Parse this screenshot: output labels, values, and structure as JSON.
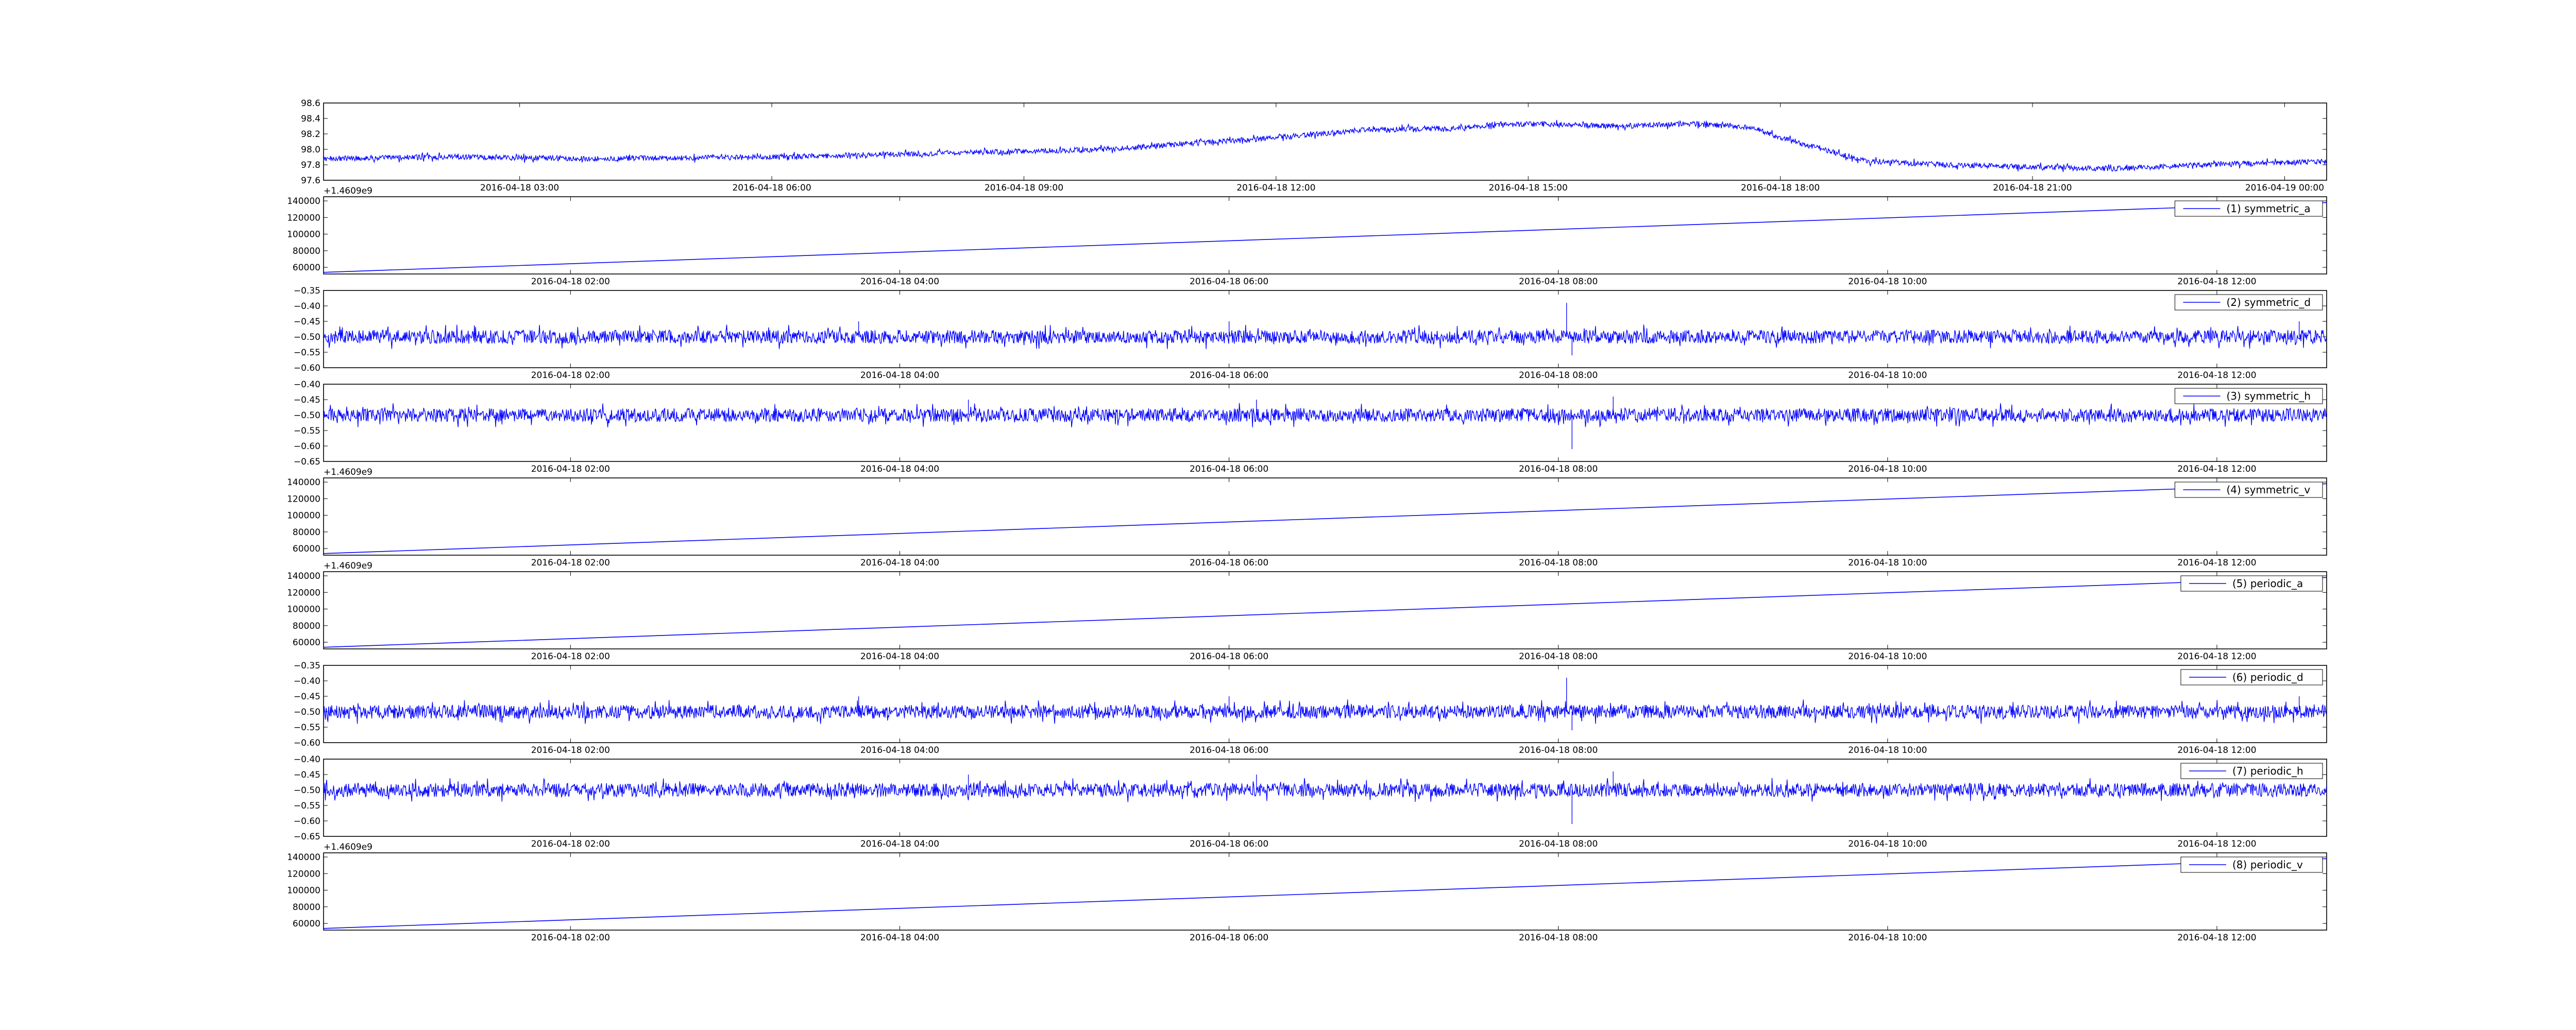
{
  "chart_data": [
    {
      "type": "line",
      "x_is_time": true,
      "x_start": "2016-04-18 00:40",
      "x_end": "2016-04-19 00:30",
      "xtick_labels": [
        {
          "label": "2016-04-18 03:00",
          "time": "2016-04-18 03:00"
        },
        {
          "label": "2016-04-18 06:00",
          "time": "2016-04-18 06:00"
        },
        {
          "label": "2016-04-18 09:00",
          "time": "2016-04-18 09:00"
        },
        {
          "label": "2016-04-18 12:00",
          "time": "2016-04-18 12:00"
        },
        {
          "label": "2016-04-18 15:00",
          "time": "2016-04-18 15:00"
        },
        {
          "label": "2016-04-18 18:00",
          "time": "2016-04-18 18:00"
        },
        {
          "label": "2016-04-18 21:00",
          "time": "2016-04-18 21:00"
        },
        {
          "label": "2016-04-19 00:00",
          "time": "2016-04-19 00:00"
        }
      ],
      "ylim": [
        97.6,
        98.6
      ],
      "yticks": [
        "98.6",
        "98.4",
        "98.2",
        "98.0",
        "97.8",
        "97.6"
      ],
      "offset_label": "+1.4609e9",
      "noise": 0.035,
      "series": [
        {
          "color": "#0000ff",
          "points": [
            [
              "2016-04-18 00:40",
              97.88
            ],
            [
              "2016-04-18 02:00",
              97.9
            ],
            [
              "2016-04-18 04:00",
              97.88
            ],
            [
              "2016-04-18 06:00",
              97.9
            ],
            [
              "2016-04-18 08:00",
              97.95
            ],
            [
              "2016-04-18 10:00",
              98.0
            ],
            [
              "2016-04-18 12:00",
              98.15
            ],
            [
              "2016-04-18 13:00",
              98.25
            ],
            [
              "2016-04-18 14:00",
              98.27
            ],
            [
              "2016-04-18 15:00",
              98.33
            ],
            [
              "2016-04-18 16:00",
              98.3
            ],
            [
              "2016-04-18 17:00",
              98.33
            ],
            [
              "2016-04-18 17:40",
              98.28
            ],
            [
              "2016-04-18 18:00",
              98.15
            ],
            [
              "2016-04-18 19:00",
              97.85
            ],
            [
              "2016-04-18 20:00",
              97.8
            ],
            [
              "2016-04-18 21:00",
              97.77
            ],
            [
              "2016-04-18 22:00",
              97.75
            ],
            [
              "2016-04-18 23:00",
              97.8
            ],
            [
              "2016-04-19 00:30",
              97.84
            ]
          ]
        }
      ]
    },
    {
      "type": "line",
      "x_is_time": true,
      "x_start": "2016-04-18 00:30",
      "x_end": "2016-04-18 12:40",
      "xtick_labels": [
        {
          "label": "2016-04-18 02:00",
          "time": "2016-04-18 02:00"
        },
        {
          "label": "2016-04-18 04:00",
          "time": "2016-04-18 04:00"
        },
        {
          "label": "2016-04-18 06:00",
          "time": "2016-04-18 06:00"
        },
        {
          "label": "2016-04-18 08:00",
          "time": "2016-04-18 08:00"
        },
        {
          "label": "2016-04-18 10:00",
          "time": "2016-04-18 10:00"
        },
        {
          "label": "2016-04-18 12:00",
          "time": "2016-04-18 12:00"
        }
      ],
      "ylim": [
        52000,
        145000
      ],
      "yticks": [
        "140000",
        "120000",
        "100000",
        "80000",
        "60000"
      ],
      "legend": "(1) symmetric_a",
      "series": [
        {
          "name": "(1) symmetric_a",
          "color": "#0000ff",
          "points": [
            [
              "2016-04-18 00:30",
              54000
            ],
            [
              "2016-04-18 12:40",
              138000
            ]
          ]
        }
      ]
    },
    {
      "type": "line",
      "x_is_time": true,
      "x_start": "2016-04-18 00:30",
      "x_end": "2016-04-18 12:40",
      "xtick_labels": [
        {
          "label": "2016-04-18 02:00",
          "time": "2016-04-18 02:00"
        },
        {
          "label": "2016-04-18 04:00",
          "time": "2016-04-18 04:00"
        },
        {
          "label": "2016-04-18 06:00",
          "time": "2016-04-18 06:00"
        },
        {
          "label": "2016-04-18 08:00",
          "time": "2016-04-18 08:00"
        },
        {
          "label": "2016-04-18 10:00",
          "time": "2016-04-18 10:00"
        },
        {
          "label": "2016-04-18 12:00",
          "time": "2016-04-18 12:00"
        }
      ],
      "ylim": [
        -0.6,
        -0.35
      ],
      "yticks": [
        "−0.35",
        "−0.40",
        "−0.45",
        "−0.50",
        "−0.55",
        "−0.60"
      ],
      "legend": "(2) symmetric_d",
      "noise": 0.022,
      "spikes": [
        [
          "2016-04-18 08:03",
          -0.39
        ],
        [
          "2016-04-18 08:05",
          -0.56
        ],
        [
          "2016-04-18 03:45",
          -0.45
        ],
        [
          "2016-04-18 06:00",
          -0.45
        ],
        [
          "2016-04-18 12:30",
          -0.45
        ]
      ],
      "series": [
        {
          "name": "(2) symmetric_d",
          "color": "#0000ff",
          "points": [
            [
              "2016-04-18 00:30",
              -0.5
            ],
            [
              "2016-04-18 12:40",
              -0.5
            ]
          ]
        }
      ]
    },
    {
      "type": "line",
      "x_is_time": true,
      "x_start": "2016-04-18 00:30",
      "x_end": "2016-04-18 12:40",
      "xtick_labels": [
        {
          "label": "2016-04-18 02:00",
          "time": "2016-04-18 02:00"
        },
        {
          "label": "2016-04-18 04:00",
          "time": "2016-04-18 04:00"
        },
        {
          "label": "2016-04-18 06:00",
          "time": "2016-04-18 06:00"
        },
        {
          "label": "2016-04-18 08:00",
          "time": "2016-04-18 08:00"
        },
        {
          "label": "2016-04-18 10:00",
          "time": "2016-04-18 10:00"
        },
        {
          "label": "2016-04-18 12:00",
          "time": "2016-04-18 12:00"
        }
      ],
      "ylim": [
        -0.65,
        -0.4
      ],
      "yticks": [
        "−0.40",
        "−0.45",
        "−0.50",
        "−0.55",
        "−0.60",
        "−0.65"
      ],
      "offset_label": "+1.4609e9",
      "legend": "(3) symmetric_h",
      "noise": 0.022,
      "spikes": [
        [
          "2016-04-18 08:05",
          -0.61
        ],
        [
          "2016-04-18 08:20",
          -0.44
        ],
        [
          "2016-04-18 04:25",
          -0.45
        ],
        [
          "2016-04-18 06:10",
          -0.45
        ]
      ],
      "series": [
        {
          "name": "(3) symmetric_h",
          "color": "#0000ff",
          "points": [
            [
              "2016-04-18 00:30",
              -0.5
            ],
            [
              "2016-04-18 12:40",
              -0.5
            ]
          ]
        }
      ]
    },
    {
      "type": "line",
      "x_is_time": true,
      "x_start": "2016-04-18 00:30",
      "x_end": "2016-04-18 12:40",
      "xtick_labels": [
        {
          "label": "2016-04-18 02:00",
          "time": "2016-04-18 02:00"
        },
        {
          "label": "2016-04-18 04:00",
          "time": "2016-04-18 04:00"
        },
        {
          "label": "2016-04-18 06:00",
          "time": "2016-04-18 06:00"
        },
        {
          "label": "2016-04-18 08:00",
          "time": "2016-04-18 08:00"
        },
        {
          "label": "2016-04-18 10:00",
          "time": "2016-04-18 10:00"
        },
        {
          "label": "2016-04-18 12:00",
          "time": "2016-04-18 12:00"
        }
      ],
      "ylim": [
        52000,
        145000
      ],
      "yticks": [
        "140000",
        "120000",
        "100000",
        "80000",
        "60000"
      ],
      "offset_label": "+1.4609e9",
      "legend": "(4) symmetric_v",
      "series": [
        {
          "name": "(4) symmetric_v",
          "color": "#0000ff",
          "points": [
            [
              "2016-04-18 00:30",
              54000
            ],
            [
              "2016-04-18 12:40",
              138000
            ]
          ]
        }
      ]
    },
    {
      "type": "line",
      "x_is_time": true,
      "x_start": "2016-04-18 00:30",
      "x_end": "2016-04-18 12:40",
      "xtick_labels": [
        {
          "label": "2016-04-18 02:00",
          "time": "2016-04-18 02:00"
        },
        {
          "label": "2016-04-18 04:00",
          "time": "2016-04-18 04:00"
        },
        {
          "label": "2016-04-18 06:00",
          "time": "2016-04-18 06:00"
        },
        {
          "label": "2016-04-18 08:00",
          "time": "2016-04-18 08:00"
        },
        {
          "label": "2016-04-18 10:00",
          "time": "2016-04-18 10:00"
        },
        {
          "label": "2016-04-18 12:00",
          "time": "2016-04-18 12:00"
        }
      ],
      "ylim": [
        52000,
        145000
      ],
      "yticks": [
        "140000",
        "120000",
        "100000",
        "80000",
        "60000"
      ],
      "legend": "(5) periodic_a",
      "series": [
        {
          "name": "(5) periodic_a",
          "color": "#0000ff",
          "points": [
            [
              "2016-04-18 00:30",
              54000
            ],
            [
              "2016-04-18 12:40",
              138000
            ]
          ]
        }
      ]
    },
    {
      "type": "line",
      "x_is_time": true,
      "x_start": "2016-04-18 00:30",
      "x_end": "2016-04-18 12:40",
      "xtick_labels": [
        {
          "label": "2016-04-18 02:00",
          "time": "2016-04-18 02:00"
        },
        {
          "label": "2016-04-18 04:00",
          "time": "2016-04-18 04:00"
        },
        {
          "label": "2016-04-18 06:00",
          "time": "2016-04-18 06:00"
        },
        {
          "label": "2016-04-18 08:00",
          "time": "2016-04-18 08:00"
        },
        {
          "label": "2016-04-18 10:00",
          "time": "2016-04-18 10:00"
        },
        {
          "label": "2016-04-18 12:00",
          "time": "2016-04-18 12:00"
        }
      ],
      "ylim": [
        -0.6,
        -0.35
      ],
      "yticks": [
        "−0.35",
        "−0.40",
        "−0.45",
        "−0.50",
        "−0.55",
        "−0.60"
      ],
      "legend": "(6) periodic_d",
      "noise": 0.022,
      "spikes": [
        [
          "2016-04-18 08:03",
          -0.39
        ],
        [
          "2016-04-18 08:05",
          -0.56
        ],
        [
          "2016-04-18 03:45",
          -0.45
        ],
        [
          "2016-04-18 06:00",
          -0.45
        ],
        [
          "2016-04-18 12:30",
          -0.45
        ]
      ],
      "series": [
        {
          "name": "(6) periodic_d",
          "color": "#0000ff",
          "points": [
            [
              "2016-04-18 00:30",
              -0.5
            ],
            [
              "2016-04-18 12:40",
              -0.5
            ]
          ]
        }
      ]
    },
    {
      "type": "line",
      "x_is_time": true,
      "x_start": "2016-04-18 00:30",
      "x_end": "2016-04-18 12:40",
      "xtick_labels": [
        {
          "label": "2016-04-18 02:00",
          "time": "2016-04-18 02:00"
        },
        {
          "label": "2016-04-18 04:00",
          "time": "2016-04-18 04:00"
        },
        {
          "label": "2016-04-18 06:00",
          "time": "2016-04-18 06:00"
        },
        {
          "label": "2016-04-18 08:00",
          "time": "2016-04-18 08:00"
        },
        {
          "label": "2016-04-18 10:00",
          "time": "2016-04-18 10:00"
        },
        {
          "label": "2016-04-18 12:00",
          "time": "2016-04-18 12:00"
        }
      ],
      "ylim": [
        -0.65,
        -0.4
      ],
      "yticks": [
        "−0.40",
        "−0.45",
        "−0.50",
        "−0.55",
        "−0.60",
        "−0.65"
      ],
      "offset_label": "+1.4609e9",
      "legend": "(7) periodic_h",
      "noise": 0.022,
      "spikes": [
        [
          "2016-04-18 08:05",
          -0.61
        ],
        [
          "2016-04-18 08:20",
          -0.44
        ],
        [
          "2016-04-18 04:25",
          -0.45
        ],
        [
          "2016-04-18 06:10",
          -0.45
        ]
      ],
      "series": [
        {
          "name": "(7) periodic_h",
          "color": "#0000ff",
          "points": [
            [
              "2016-04-18 00:30",
              -0.5
            ],
            [
              "2016-04-18 12:40",
              -0.5
            ]
          ]
        }
      ]
    },
    {
      "type": "line",
      "x_is_time": true,
      "x_start": "2016-04-18 00:30",
      "x_end": "2016-04-18 12:40",
      "xtick_labels": [
        {
          "label": "2016-04-18 02:00",
          "time": "2016-04-18 02:00"
        },
        {
          "label": "2016-04-18 04:00",
          "time": "2016-04-18 04:00"
        },
        {
          "label": "2016-04-18 06:00",
          "time": "2016-04-18 06:00"
        },
        {
          "label": "2016-04-18 08:00",
          "time": "2016-04-18 08:00"
        },
        {
          "label": "2016-04-18 10:00",
          "time": "2016-04-18 10:00"
        },
        {
          "label": "2016-04-18 12:00",
          "time": "2016-04-18 12:00"
        }
      ],
      "ylim": [
        52000,
        145000
      ],
      "yticks": [
        "140000",
        "120000",
        "100000",
        "80000",
        "60000"
      ],
      "legend": "(8) periodic_v",
      "series": [
        {
          "name": "(8) periodic_v",
          "color": "#0000ff",
          "points": [
            [
              "2016-04-18 00:30",
              54000
            ],
            [
              "2016-04-18 12:40",
              138000
            ]
          ]
        }
      ]
    }
  ]
}
